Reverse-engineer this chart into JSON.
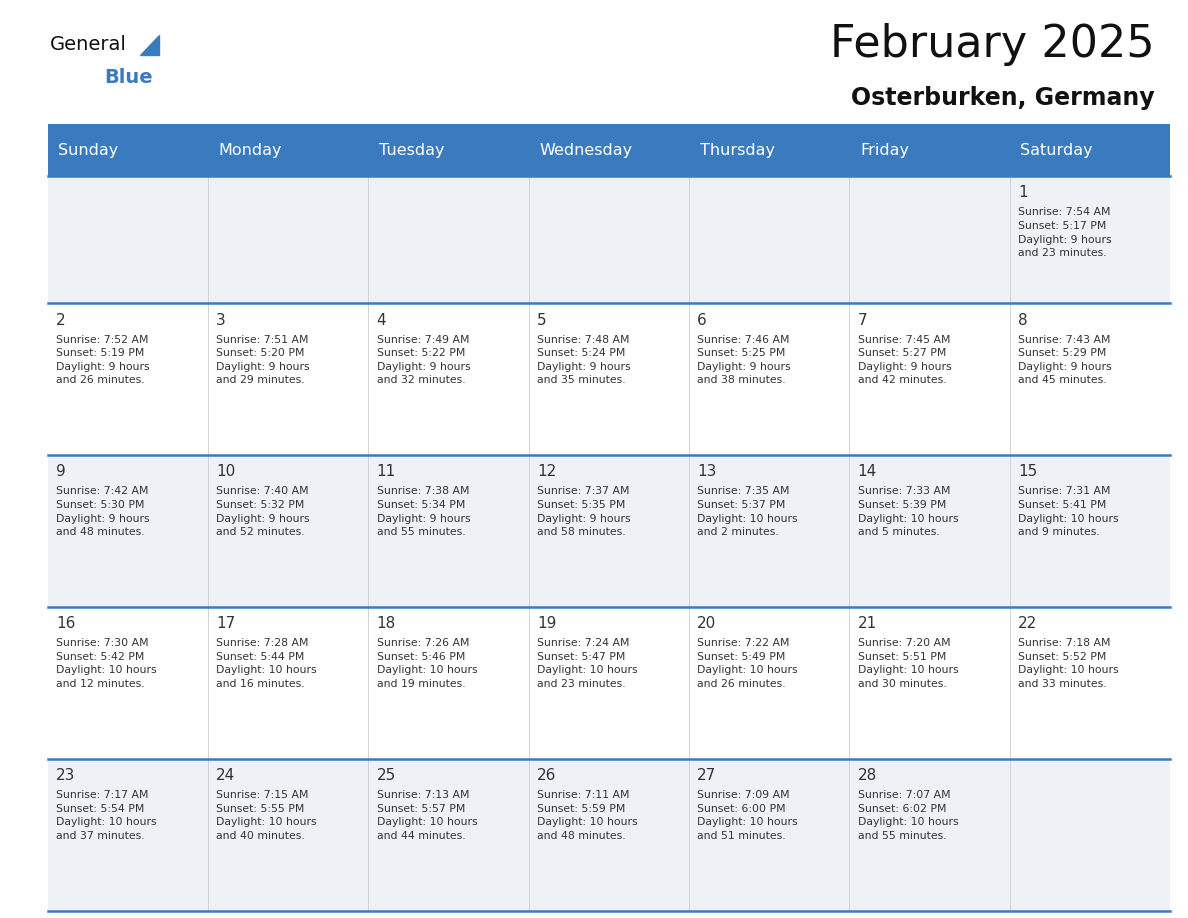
{
  "title": "February 2025",
  "subtitle": "Osterburken, Germany",
  "header_color": "#3a7bbf",
  "header_text_color": "#ffffff",
  "days_of_week": [
    "Sunday",
    "Monday",
    "Tuesday",
    "Wednesday",
    "Thursday",
    "Friday",
    "Saturday"
  ],
  "background_color": "#ffffff",
  "cell_bg_even": "#eef2f7",
  "cell_bg_odd": "#ffffff",
  "text_color": "#333333",
  "day_num_color": "#333333",
  "line_color": "#3a7bbf",
  "calendar": [
    [
      null,
      null,
      null,
      null,
      null,
      null,
      {
        "day": 1,
        "sunrise": "7:54 AM",
        "sunset": "5:17 PM",
        "daylight": "9 hours\nand 23 minutes."
      }
    ],
    [
      {
        "day": 2,
        "sunrise": "7:52 AM",
        "sunset": "5:19 PM",
        "daylight": "9 hours\nand 26 minutes."
      },
      {
        "day": 3,
        "sunrise": "7:51 AM",
        "sunset": "5:20 PM",
        "daylight": "9 hours\nand 29 minutes."
      },
      {
        "day": 4,
        "sunrise": "7:49 AM",
        "sunset": "5:22 PM",
        "daylight": "9 hours\nand 32 minutes."
      },
      {
        "day": 5,
        "sunrise": "7:48 AM",
        "sunset": "5:24 PM",
        "daylight": "9 hours\nand 35 minutes."
      },
      {
        "day": 6,
        "sunrise": "7:46 AM",
        "sunset": "5:25 PM",
        "daylight": "9 hours\nand 38 minutes."
      },
      {
        "day": 7,
        "sunrise": "7:45 AM",
        "sunset": "5:27 PM",
        "daylight": "9 hours\nand 42 minutes."
      },
      {
        "day": 8,
        "sunrise": "7:43 AM",
        "sunset": "5:29 PM",
        "daylight": "9 hours\nand 45 minutes."
      }
    ],
    [
      {
        "day": 9,
        "sunrise": "7:42 AM",
        "sunset": "5:30 PM",
        "daylight": "9 hours\nand 48 minutes."
      },
      {
        "day": 10,
        "sunrise": "7:40 AM",
        "sunset": "5:32 PM",
        "daylight": "9 hours\nand 52 minutes."
      },
      {
        "day": 11,
        "sunrise": "7:38 AM",
        "sunset": "5:34 PM",
        "daylight": "9 hours\nand 55 minutes."
      },
      {
        "day": 12,
        "sunrise": "7:37 AM",
        "sunset": "5:35 PM",
        "daylight": "9 hours\nand 58 minutes."
      },
      {
        "day": 13,
        "sunrise": "7:35 AM",
        "sunset": "5:37 PM",
        "daylight": "10 hours\nand 2 minutes."
      },
      {
        "day": 14,
        "sunrise": "7:33 AM",
        "sunset": "5:39 PM",
        "daylight": "10 hours\nand 5 minutes."
      },
      {
        "day": 15,
        "sunrise": "7:31 AM",
        "sunset": "5:41 PM",
        "daylight": "10 hours\nand 9 minutes."
      }
    ],
    [
      {
        "day": 16,
        "sunrise": "7:30 AM",
        "sunset": "5:42 PM",
        "daylight": "10 hours\nand 12 minutes."
      },
      {
        "day": 17,
        "sunrise": "7:28 AM",
        "sunset": "5:44 PM",
        "daylight": "10 hours\nand 16 minutes."
      },
      {
        "day": 18,
        "sunrise": "7:26 AM",
        "sunset": "5:46 PM",
        "daylight": "10 hours\nand 19 minutes."
      },
      {
        "day": 19,
        "sunrise": "7:24 AM",
        "sunset": "5:47 PM",
        "daylight": "10 hours\nand 23 minutes."
      },
      {
        "day": 20,
        "sunrise": "7:22 AM",
        "sunset": "5:49 PM",
        "daylight": "10 hours\nand 26 minutes."
      },
      {
        "day": 21,
        "sunrise": "7:20 AM",
        "sunset": "5:51 PM",
        "daylight": "10 hours\nand 30 minutes."
      },
      {
        "day": 22,
        "sunrise": "7:18 AM",
        "sunset": "5:52 PM",
        "daylight": "10 hours\nand 33 minutes."
      }
    ],
    [
      {
        "day": 23,
        "sunrise": "7:17 AM",
        "sunset": "5:54 PM",
        "daylight": "10 hours\nand 37 minutes."
      },
      {
        "day": 24,
        "sunrise": "7:15 AM",
        "sunset": "5:55 PM",
        "daylight": "10 hours\nand 40 minutes."
      },
      {
        "day": 25,
        "sunrise": "7:13 AM",
        "sunset": "5:57 PM",
        "daylight": "10 hours\nand 44 minutes."
      },
      {
        "day": 26,
        "sunrise": "7:11 AM",
        "sunset": "5:59 PM",
        "daylight": "10 hours\nand 48 minutes."
      },
      {
        "day": 27,
        "sunrise": "7:09 AM",
        "sunset": "6:00 PM",
        "daylight": "10 hours\nand 51 minutes."
      },
      {
        "day": 28,
        "sunrise": "7:07 AM",
        "sunset": "6:02 PM",
        "daylight": "10 hours\nand 55 minutes."
      },
      null
    ]
  ]
}
